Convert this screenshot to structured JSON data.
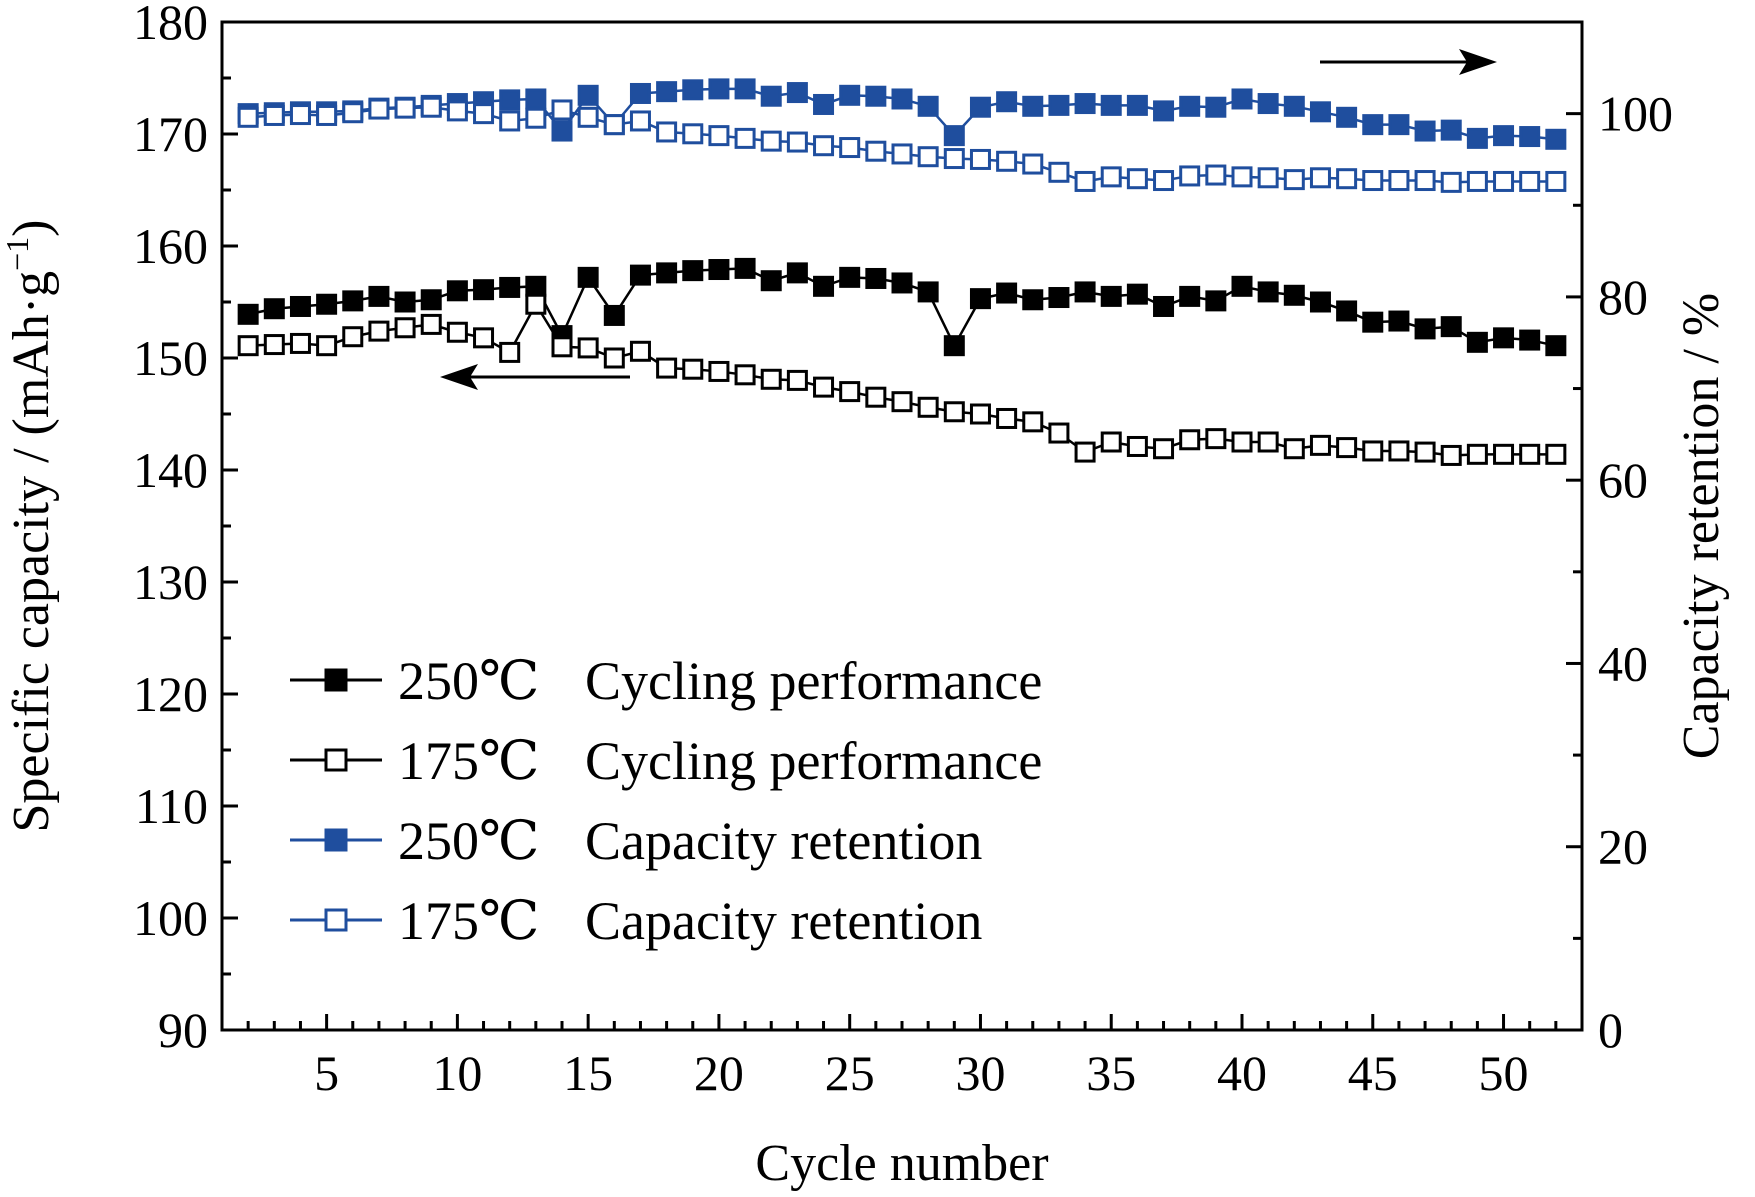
{
  "chart_data": {
    "type": "line",
    "title": "",
    "xlabel": "Cycle number",
    "ylabel_left_main": "Specific capacity / (mAh·g",
    "ylabel_left_sup": "−1",
    "ylabel_left_close": ")",
    "ylabel_right": "Capacity retention / %",
    "xlim": [
      1,
      53
    ],
    "ylim_left": [
      90,
      180
    ],
    "ylim_right": [
      0,
      110
    ],
    "x_ticks": [
      5,
      10,
      15,
      20,
      25,
      30,
      35,
      40,
      45,
      50
    ],
    "y_left_ticks": [
      90,
      100,
      110,
      120,
      130,
      140,
      150,
      160,
      170,
      180
    ],
    "y_right_ticks": [
      0,
      20,
      40,
      60,
      80,
      100
    ],
    "legend_position": "lower-left",
    "colors": {
      "black": "#000000",
      "blue": "#1f4e9e"
    },
    "annotations": [
      {
        "type": "arrow",
        "direction": "left",
        "points_to": "left-axis"
      },
      {
        "type": "arrow",
        "direction": "right",
        "points_to": "right-axis"
      }
    ],
    "x": [
      2,
      3,
      4,
      5,
      6,
      7,
      8,
      9,
      10,
      11,
      12,
      13,
      14,
      15,
      16,
      17,
      18,
      19,
      20,
      21,
      22,
      23,
      24,
      25,
      26,
      27,
      28,
      29,
      30,
      31,
      32,
      33,
      34,
      35,
      36,
      37,
      38,
      39,
      40,
      41,
      42,
      43,
      44,
      45,
      46,
      47,
      48,
      49,
      50,
      51,
      52
    ],
    "series": [
      {
        "name": "250℃ Cycling performance",
        "axis": "left",
        "color": "#000000",
        "filled": true,
        "values": [
          153.9,
          154.4,
          154.6,
          154.8,
          155.1,
          155.5,
          155.0,
          155.2,
          156.0,
          156.1,
          156.3,
          156.4,
          152.0,
          157.2,
          153.8,
          157.4,
          157.6,
          157.8,
          157.9,
          158.0,
          156.9,
          157.6,
          156.4,
          157.2,
          157.1,
          156.7,
          155.9,
          151.1,
          155.3,
          155.8,
          155.2,
          155.4,
          155.9,
          155.5,
          155.7,
          154.6,
          155.5,
          155.1,
          156.4,
          155.9,
          155.6,
          155.0,
          154.2,
          153.2,
          153.3,
          152.6,
          152.8,
          151.4,
          151.8,
          151.6,
          151.1
        ]
      },
      {
        "name": "175℃ Cycling performance",
        "axis": "left",
        "color": "#000000",
        "filled": false,
        "values": [
          151.1,
          151.2,
          151.3,
          151.1,
          151.9,
          152.4,
          152.7,
          153.0,
          152.3,
          151.8,
          150.5,
          154.8,
          151.0,
          150.9,
          150.0,
          150.6,
          149.1,
          149.0,
          148.8,
          148.5,
          148.1,
          148.0,
          147.4,
          147.0,
          146.5,
          146.1,
          145.6,
          145.2,
          145.0,
          144.6,
          144.3,
          143.3,
          141.6,
          142.5,
          142.1,
          141.9,
          142.7,
          142.8,
          142.5,
          142.5,
          141.9,
          142.2,
          142.0,
          141.7,
          141.7,
          141.6,
          141.3,
          141.4,
          141.4,
          141.4,
          141.4
        ]
      },
      {
        "name": "250℃ Capacity retention",
        "axis": "right",
        "color": "#1f4e9e",
        "filled": true,
        "values": [
          100.0,
          100.1,
          100.2,
          100.2,
          100.3,
          100.6,
          100.7,
          100.9,
          101.1,
          101.3,
          101.5,
          101.6,
          98.1,
          102.0,
          98.8,
          102.2,
          102.4,
          102.6,
          102.7,
          102.7,
          101.9,
          102.3,
          101.0,
          102.0,
          101.9,
          101.6,
          100.8,
          97.6,
          100.7,
          101.3,
          100.8,
          100.9,
          101.1,
          100.9,
          100.9,
          100.3,
          100.8,
          100.7,
          101.6,
          101.1,
          100.8,
          100.2,
          99.6,
          98.8,
          98.8,
          98.1,
          98.2,
          97.3,
          97.6,
          97.5,
          97.2
        ]
      },
      {
        "name": "175℃ Capacity retention",
        "axis": "right",
        "color": "#1f4e9e",
        "filled": false,
        "values": [
          99.6,
          99.8,
          99.9,
          99.8,
          100.1,
          100.5,
          100.6,
          100.7,
          100.3,
          100.0,
          99.2,
          99.5,
          100.4,
          99.6,
          98.8,
          99.2,
          98.0,
          97.8,
          97.6,
          97.3,
          97.0,
          96.9,
          96.5,
          96.3,
          95.9,
          95.6,
          95.3,
          95.1,
          95.0,
          94.8,
          94.5,
          93.6,
          92.6,
          93.1,
          92.9,
          92.7,
          93.2,
          93.3,
          93.1,
          93.0,
          92.8,
          93.0,
          92.9,
          92.7,
          92.7,
          92.7,
          92.5,
          92.6,
          92.6,
          92.6,
          92.6
        ]
      }
    ]
  },
  "legend": {
    "items": [
      {
        "temp": "250℃",
        "desc": "Cycling performance",
        "color": "#000000",
        "filled": true
      },
      {
        "temp": "175℃",
        "desc": "Cycling performance",
        "color": "#000000",
        "filled": false
      },
      {
        "temp": "250℃",
        "desc": "Capacity retention",
        "color": "#1f4e9e",
        "filled": true
      },
      {
        "temp": "175℃",
        "desc": "Capacity retention",
        "color": "#1f4e9e",
        "filled": false
      }
    ]
  }
}
